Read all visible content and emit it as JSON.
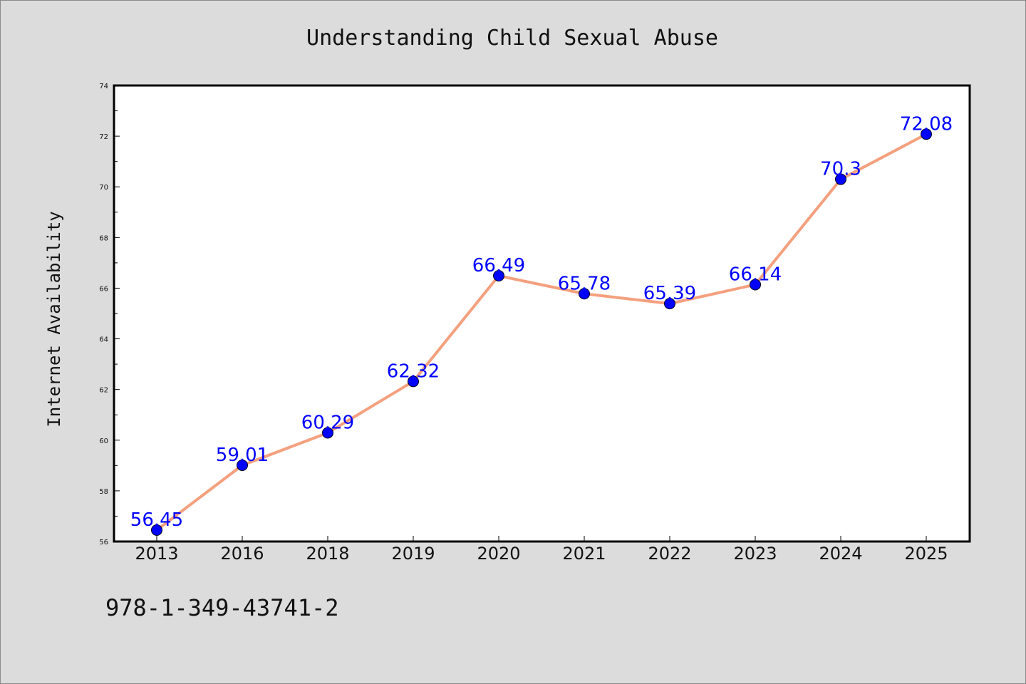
{
  "chart_data": {
    "type": "line",
    "title": "Understanding Child Sexual Abuse",
    "xlabel": "",
    "ylabel": "Internet Availability",
    "categories": [
      "2013",
      "2016",
      "2018",
      "2019",
      "2020",
      "2021",
      "2022",
      "2023",
      "2024",
      "2025"
    ],
    "values": [
      56.45,
      59.01,
      60.29,
      62.32,
      66.49,
      65.78,
      65.39,
      66.14,
      70.3,
      72.08
    ],
    "data_labels": [
      "56.45",
      "59.01",
      "60.29",
      "62.32",
      "66.49",
      "65.78",
      "65.39",
      "66.14",
      "70.3",
      "72.08"
    ],
    "ylim": [
      56,
      74
    ],
    "yticks": [
      56,
      58,
      60,
      62,
      64,
      66,
      68,
      70,
      72,
      74
    ],
    "grid": false,
    "line_color": "#f4a07e",
    "marker_color": "#0000ff",
    "label_color": "#0000ff"
  },
  "footer": {
    "isbn": "978-1-349-43741-2"
  }
}
